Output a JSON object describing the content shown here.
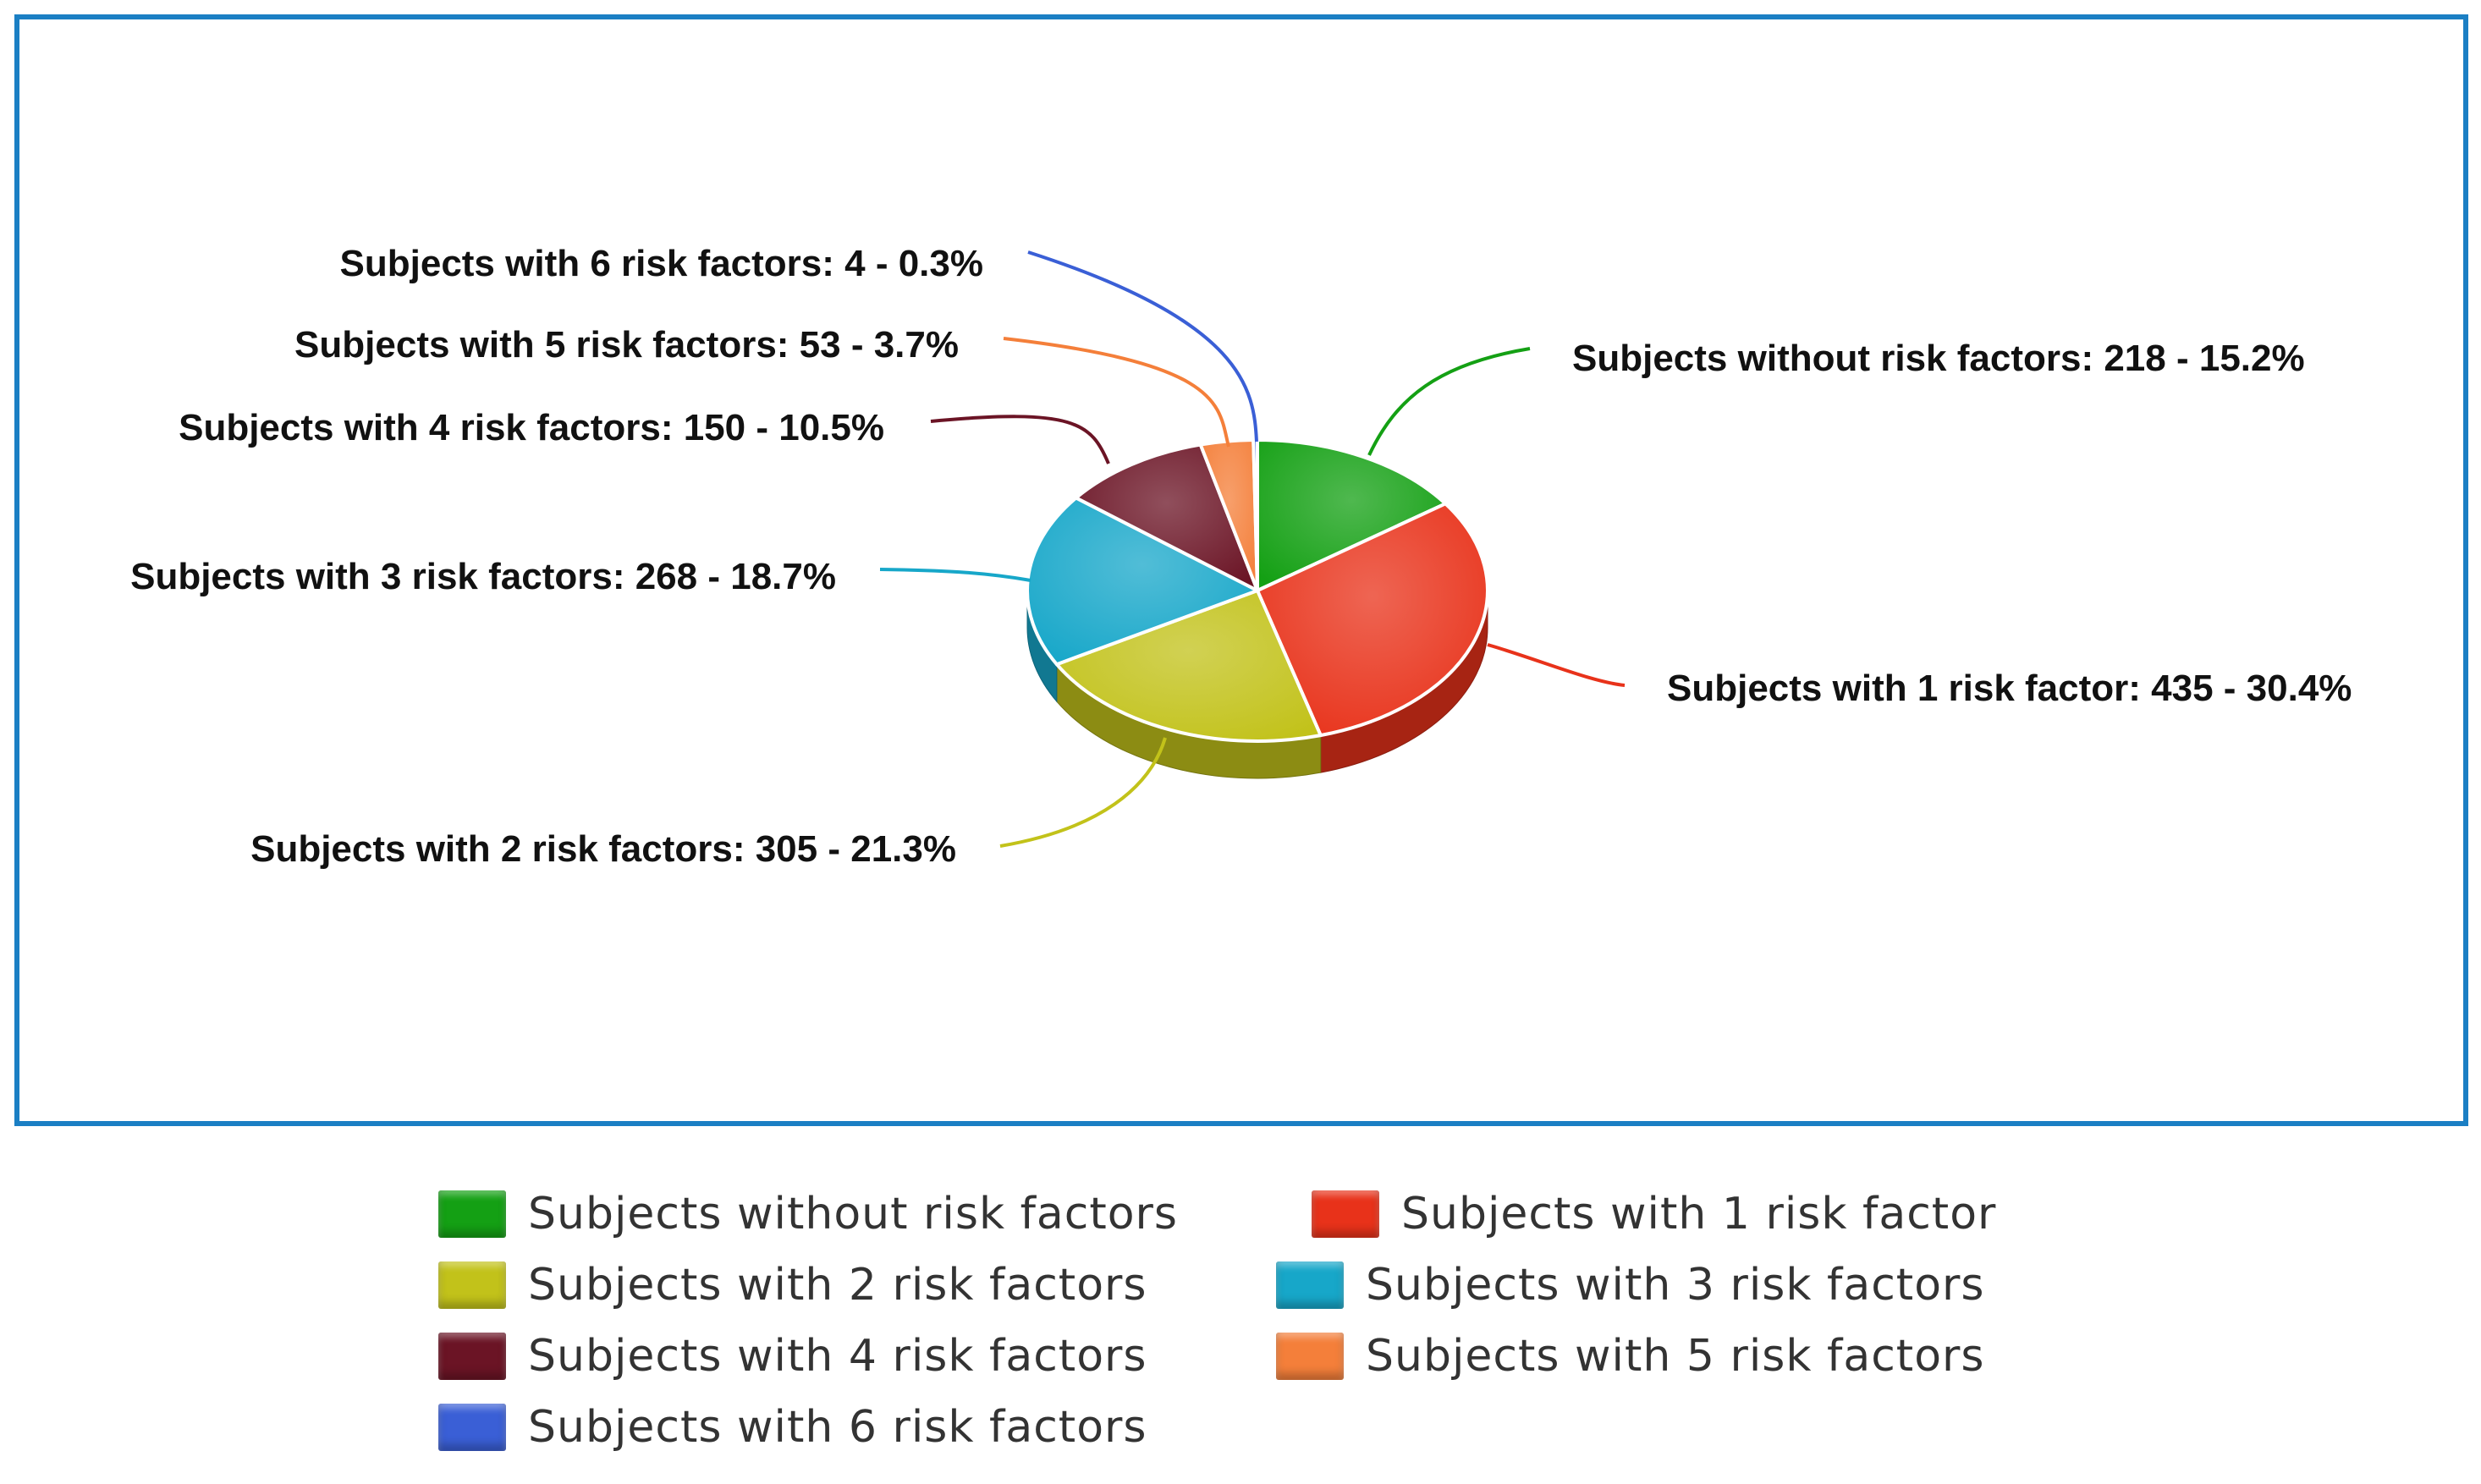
{
  "chart_data": {
    "type": "pie",
    "title": "",
    "unit": "subjects",
    "categories": [
      "Subjects without risk factors",
      "Subjects with 1 risk factor",
      "Subjects with 2 risk factors",
      "Subjects with 3 risk factors",
      "Subjects with 4 risk factors",
      "Subjects with 5 risk factors",
      "Subjects with 6 risk factors"
    ],
    "values": [
      218,
      435,
      305,
      268,
      150,
      53,
      4
    ],
    "percentages": [
      15.2,
      30.4,
      21.3,
      18.7,
      10.5,
      3.7,
      0.3
    ],
    "data_labels": [
      "Subjects without risk factors: 218 - 15.2%",
      "Subjects with 1 risk factor: 435 - 30.4%",
      "Subjects with 2 risk factors: 305 - 21.3%",
      "Subjects with 3 risk factors: 268 - 18.7%",
      "Subjects with 4 risk factors: 150 - 10.5%",
      "Subjects with 5 risk factors: 53 - 3.7%",
      "Subjects with 6 risk factors: 4 - 0.3%"
    ],
    "colors": [
      "#14a014",
      "#e8321a",
      "#c2c21a",
      "#17a7c9",
      "#6b1425",
      "#f47f3a",
      "#3a5fd6"
    ],
    "legend_position": "bottom",
    "style": "3d-tilted"
  },
  "legend": {
    "items": [
      {
        "label": "Subjects without risk factors",
        "color": "#14a014"
      },
      {
        "label": "Subjects with 1 risk factor",
        "color": "#e8321a"
      },
      {
        "label": "Subjects with 2 risk factors",
        "color": "#c2c21a"
      },
      {
        "label": "Subjects with 3 risk factors",
        "color": "#17a7c9"
      },
      {
        "label": "Subjects with 4 risk factors",
        "color": "#6b1425"
      },
      {
        "label": "Subjects with 5 risk factors",
        "color": "#f47f3a"
      },
      {
        "label": "Subjects with 6 risk factors",
        "color": "#3a5fd6"
      }
    ]
  }
}
